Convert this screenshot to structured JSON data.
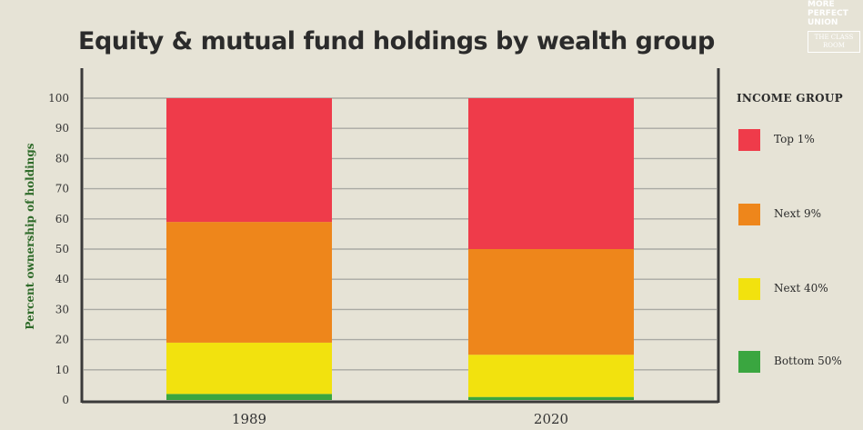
{
  "brand": {
    "name": "MORE PERFECT UNION",
    "sub": "THE CLASS ROOM"
  },
  "chart_data": {
    "type": "bar",
    "stacked": true,
    "title": "Equity & mutual fund holdings by wealth group",
    "xlabel": "",
    "ylabel": "Percent ownership of holdings",
    "ylim": [
      0,
      100
    ],
    "yticks": [
      0,
      10,
      20,
      30,
      40,
      50,
      60,
      70,
      80,
      90,
      100
    ],
    "grid": true,
    "categories": [
      "1989",
      "2020"
    ],
    "legend_title": "INCOME GROUP",
    "legend_position": "right",
    "series": [
      {
        "name": "Bottom 50%",
        "color": "#3aa640",
        "values": [
          2,
          1
        ]
      },
      {
        "name": "Next 40%",
        "color": "#f2e20e",
        "values": [
          17,
          14
        ]
      },
      {
        "name": "Next 9%",
        "color": "#ee861b",
        "values": [
          40,
          35
        ]
      },
      {
        "name": "Top 1%",
        "color": "#ef3b4a",
        "values": [
          41,
          50
        ]
      }
    ]
  }
}
